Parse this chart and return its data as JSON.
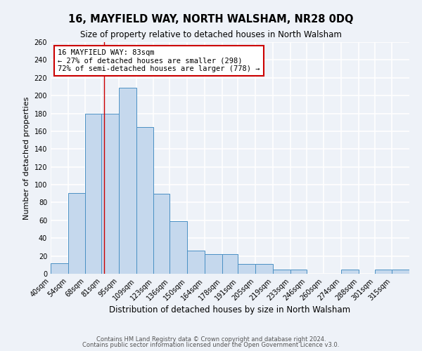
{
  "title": "16, MAYFIELD WAY, NORTH WALSHAM, NR28 0DQ",
  "subtitle": "Size of property relative to detached houses in North Walsham",
  "xlabel": "Distribution of detached houses by size in North Walsham",
  "ylabel": "Number of detached properties",
  "bar_labels": [
    "40sqm",
    "54sqm",
    "68sqm",
    "81sqm",
    "95sqm",
    "109sqm",
    "123sqm",
    "136sqm",
    "150sqm",
    "164sqm",
    "178sqm",
    "191sqm",
    "205sqm",
    "219sqm",
    "233sqm",
    "246sqm",
    "260sqm",
    "274sqm",
    "288sqm",
    "301sqm",
    "315sqm"
  ],
  "bar_values": [
    12,
    91,
    180,
    180,
    209,
    165,
    90,
    59,
    26,
    22,
    22,
    11,
    11,
    5,
    5,
    0,
    0,
    5,
    0,
    5,
    5
  ],
  "bar_color": "#c5d8ed",
  "bar_edge_color": "#4a90c4",
  "property_line_x": 83,
  "bin_edges": [
    40,
    54,
    68,
    81,
    95,
    109,
    123,
    136,
    150,
    164,
    178,
    191,
    205,
    219,
    233,
    246,
    260,
    274,
    288,
    301,
    315,
    329
  ],
  "annotation_title": "16 MAYFIELD WAY: 83sqm",
  "annotation_line1": "← 27% of detached houses are smaller (298)",
  "annotation_line2": "72% of semi-detached houses are larger (778) →",
  "annotation_box_color": "#ffffff",
  "annotation_box_edge_color": "#cc0000",
  "ylim": [
    0,
    260
  ],
  "yticks": [
    0,
    20,
    40,
    60,
    80,
    100,
    120,
    140,
    160,
    180,
    200,
    220,
    240,
    260
  ],
  "footer1": "Contains HM Land Registry data © Crown copyright and database right 2024.",
  "footer2": "Contains public sector information licensed under the Open Government Licence v3.0.",
  "background_color": "#eef2f8",
  "plot_background_color": "#eef2f8",
  "grid_color": "#ffffff",
  "title_fontsize": 10.5,
  "subtitle_fontsize": 8.5,
  "xlabel_fontsize": 8.5,
  "ylabel_fontsize": 8,
  "tick_fontsize": 7,
  "annotation_fontsize": 7.5,
  "footer_fontsize": 6
}
